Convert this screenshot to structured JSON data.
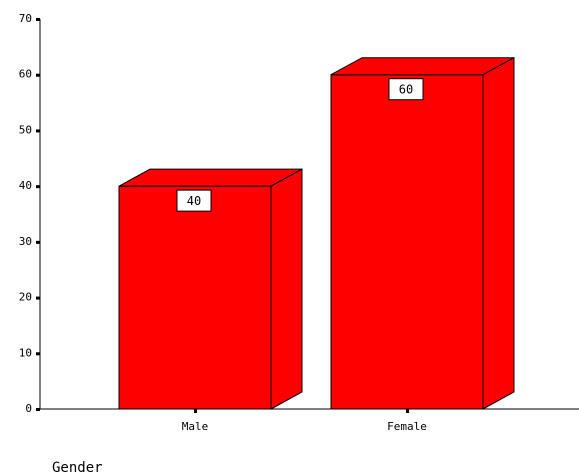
{
  "chart_data": {
    "type": "bar",
    "categories": [
      "Male",
      "Female"
    ],
    "values": [
      40,
      60
    ],
    "data_labels": [
      "40",
      "60"
    ],
    "xlabel": "Gender",
    "ylabel": "",
    "ylim": [
      0,
      70
    ],
    "yticks": [
      "0",
      "10",
      "20",
      "30",
      "40",
      "50",
      "60",
      "70"
    ],
    "grid": false,
    "style": "3d-bar",
    "bar_color": "#ff0000",
    "edge_color": "#000000"
  }
}
